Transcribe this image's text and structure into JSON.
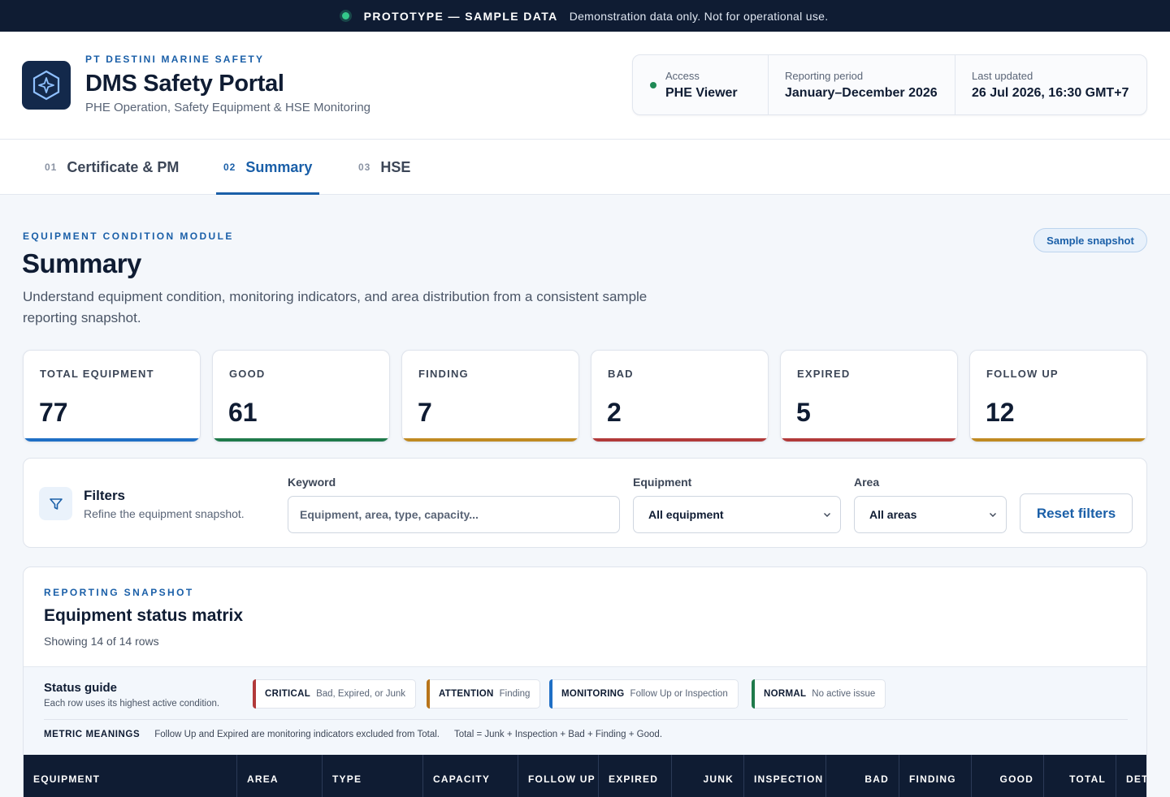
{
  "banner": {
    "tag": "PROTOTYPE — SAMPLE DATA",
    "note": "Demonstration data only. Not for operational use."
  },
  "brand": {
    "company": "PT DESTINI MARINE SAFETY",
    "title": "DMS Safety Portal",
    "subtitle": "PHE Operation, Safety Equipment & HSE Monitoring"
  },
  "meta": {
    "access_label": "Access",
    "access_value": "PHE Viewer",
    "period_label": "Reporting period",
    "period_value": "January–December 2026",
    "updated_label": "Last updated",
    "updated_value": "26 Jul 2026, 16:30 GMT+7"
  },
  "tabs": [
    {
      "num": "01",
      "label": "Certificate & PM"
    },
    {
      "num": "02",
      "label": "Summary"
    },
    {
      "num": "03",
      "label": "HSE"
    }
  ],
  "page": {
    "eyebrow": "EQUIPMENT CONDITION MODULE",
    "title": "Summary",
    "description": "Understand equipment condition, monitoring indicators, and area distribution from a consistent sample reporting snapshot.",
    "snapshot_pill": "Sample snapshot"
  },
  "kpis": [
    {
      "label": "TOTAL EQUIPMENT",
      "value": "77",
      "color": "#1f6fc5"
    },
    {
      "label": "GOOD",
      "value": "61",
      "color": "#1f7a4a"
    },
    {
      "label": "FINDING",
      "value": "7",
      "color": "#c08a22"
    },
    {
      "label": "BAD",
      "value": "2",
      "color": "#b23a3a"
    },
    {
      "label": "EXPIRED",
      "value": "5",
      "color": "#b23a3a"
    },
    {
      "label": "FOLLOW UP",
      "value": "12",
      "color": "#c08a22"
    }
  ],
  "filters": {
    "title": "Filters",
    "subtitle": "Refine the equipment snapshot.",
    "keyword_label": "Keyword",
    "keyword_placeholder": "Equipment, area, type, capacity...",
    "equipment_label": "Equipment",
    "equipment_value": "All equipment",
    "area_label": "Area",
    "area_value": "All areas",
    "reset_label": "Reset filters"
  },
  "matrix": {
    "eyebrow": "REPORTING SNAPSHOT",
    "title": "Equipment status matrix",
    "subtitle": "Showing 14 of 14 rows",
    "guide_title": "Status guide",
    "guide_subtitle": "Each row uses its highest active condition.",
    "chips": [
      {
        "name": "CRITICAL",
        "desc": "Bad, Expired, or Junk",
        "color": "#b23a3a"
      },
      {
        "name": "ATTENTION",
        "desc": "Finding",
        "color": "#b8741a"
      },
      {
        "name": "MONITORING",
        "desc": "Follow Up or Inspection",
        "color": "#1f6fc5"
      },
      {
        "name": "NORMAL",
        "desc": "No active issue",
        "color": "#1f7a4a"
      }
    ],
    "meaning_label": "METRIC MEANINGS",
    "meaning_1": "Follow Up and Expired are monitoring indicators excluded from Total.",
    "meaning_2": "Total = Junk + Inspection + Bad + Finding + Good.",
    "columns": [
      "EQUIPMENT",
      "AREA",
      "TYPE",
      "CAPACITY",
      "FOLLOW UP",
      "EXPIRED",
      "JUNK",
      "INSPECTION",
      "BAD",
      "FINDING",
      "GOOD",
      "TOTAL",
      "DETA"
    ]
  }
}
